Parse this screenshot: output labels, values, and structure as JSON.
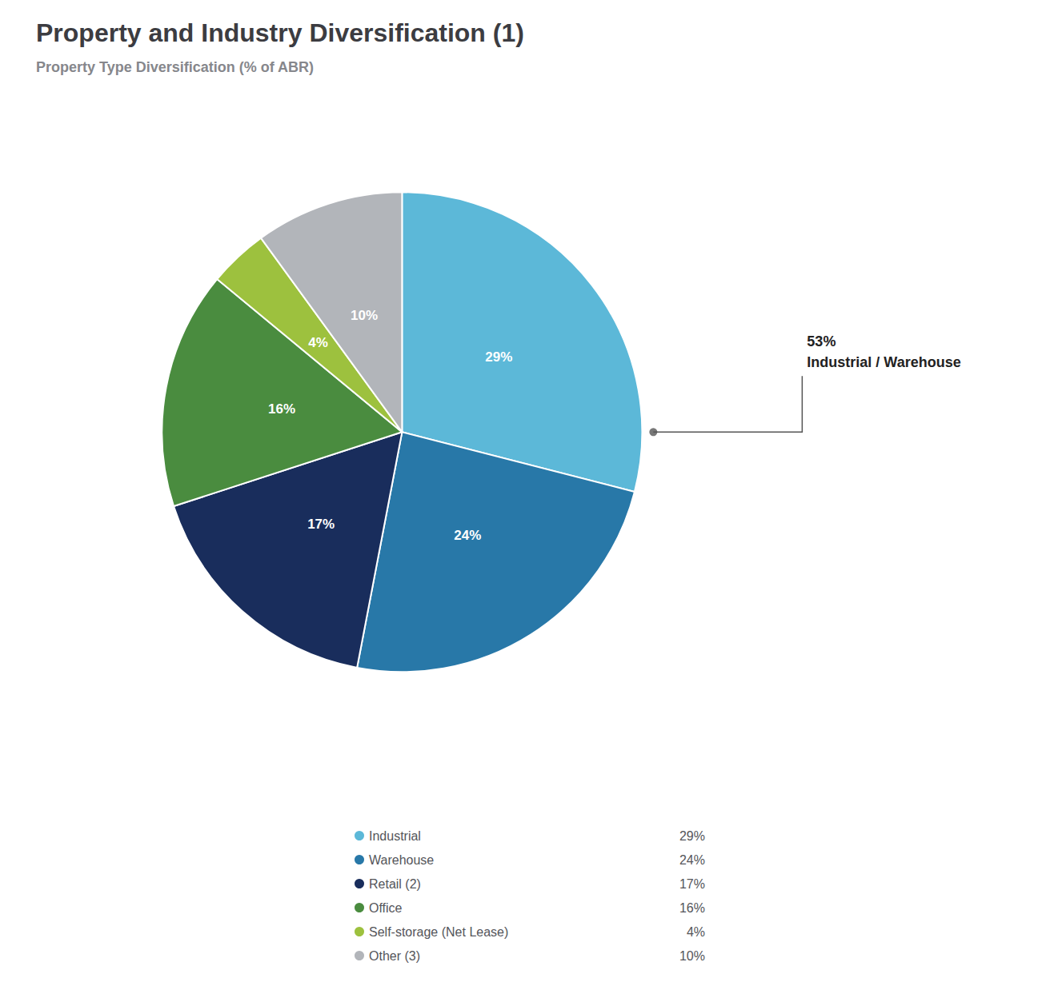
{
  "chart_data": {
    "type": "pie",
    "title": "Property and Industry Diversification (1)",
    "subtitle": "Property Type Diversification (% of ABR)",
    "categories": [
      "Industrial",
      "Warehouse",
      "Retail (2)",
      "Office",
      "Self-storage (Net Lease)",
      "Other (3)"
    ],
    "values": [
      29,
      24,
      17,
      16,
      4,
      10
    ],
    "value_labels": [
      "29%",
      "24%",
      "17%",
      "16%",
      "4%",
      "10%"
    ],
    "colors": [
      "#5cb8d8",
      "#2878a8",
      "#192d5c",
      "#4a8c3f",
      "#9dc13e",
      "#b2b5ba"
    ],
    "data_labels": true,
    "legend": "bottom",
    "annotation": "53%\nIndustrial / Warehouse"
  }
}
